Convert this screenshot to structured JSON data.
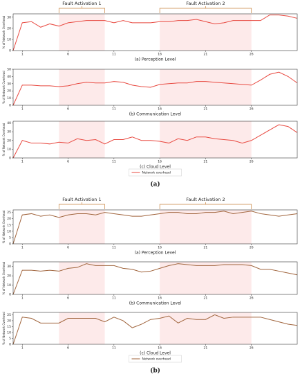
{
  "chart_data": [
    {
      "type": "line",
      "xlabel": "(a) Perception Level",
      "ylabel": "% of Network Overhead",
      "x": [
        0,
        1,
        2,
        3,
        4,
        5,
        6,
        7,
        8,
        9,
        10,
        11,
        12,
        13,
        14,
        15,
        16,
        17,
        18,
        19,
        20,
        21,
        22,
        23,
        24,
        25,
        26,
        27,
        28,
        29,
        30,
        31
      ],
      "series": [
        {
          "name": "Network overhead",
          "color": "#e8483f",
          "values": [
            0,
            25,
            26,
            21,
            24,
            22,
            25,
            26,
            27,
            27,
            27,
            25,
            27,
            25,
            25,
            25,
            26,
            26,
            27,
            27,
            28,
            26,
            24,
            25,
            27,
            27,
            27,
            27,
            32,
            32,
            31,
            29
          ]
        }
      ],
      "xlim": [
        0,
        31
      ],
      "xticks": [
        1,
        6,
        11,
        16,
        21,
        26
      ],
      "ylim": [
        0,
        33
      ],
      "yticks": [
        0,
        10,
        20,
        30
      ],
      "highlights": [
        [
          5,
          10
        ],
        [
          16,
          26
        ]
      ],
      "annotations": [
        {
          "text": "Fault Activation 1",
          "from": 5,
          "to": 10
        },
        {
          "text": "Fault Activation 2",
          "from": 16,
          "to": 26
        }
      ]
    },
    {
      "type": "line",
      "xlabel": "(b) Communication Level",
      "ylabel": "% of Network Overhead",
      "x": [
        0,
        1,
        2,
        3,
        4,
        5,
        6,
        7,
        8,
        9,
        10,
        11,
        12,
        13,
        14,
        15,
        16,
        17,
        18,
        19,
        20,
        21,
        22,
        23,
        24,
        25,
        26,
        27,
        28,
        29,
        30,
        31
      ],
      "series": [
        {
          "name": "Network overhead",
          "color": "#e8483f",
          "values": [
            0,
            28,
            28,
            27,
            27,
            26,
            27,
            30,
            32,
            31,
            31,
            33,
            32,
            28,
            26,
            25,
            29,
            30,
            31,
            31,
            33,
            33,
            32,
            31,
            30,
            29,
            28,
            35,
            43,
            46,
            40,
            31
          ]
        }
      ],
      "xlim": [
        0,
        31
      ],
      "xticks": [
        1,
        6,
        11,
        16,
        21,
        26
      ],
      "ylim": [
        0,
        50
      ],
      "yticks": [
        0,
        10,
        20,
        30,
        40,
        50
      ],
      "highlights": [
        [
          5,
          10
        ],
        [
          16,
          26
        ]
      ]
    },
    {
      "type": "line",
      "xlabel": "(c) Cloud Level",
      "ylabel": "% of Network Overhead",
      "x": [
        0,
        1,
        2,
        3,
        4,
        5,
        6,
        7,
        8,
        9,
        10,
        11,
        12,
        13,
        14,
        15,
        16,
        17,
        18,
        19,
        20,
        21,
        22,
        23,
        24,
        25,
        26,
        27,
        28,
        29,
        30,
        31
      ],
      "series": [
        {
          "name": "Network overhead",
          "color": "#e8483f",
          "values": [
            0,
            20,
            17,
            17,
            16,
            18,
            17,
            22,
            20,
            21,
            16,
            21,
            21,
            24,
            20,
            20,
            19,
            17,
            22,
            20,
            24,
            24,
            22,
            21,
            20,
            17,
            20,
            26,
            32,
            38,
            36,
            29
          ]
        }
      ],
      "xlim": [
        0,
        31
      ],
      "xticks": [
        1,
        6,
        11,
        16,
        21,
        26
      ],
      "ylim": [
        0,
        42
      ],
      "yticks": [
        0,
        10,
        20,
        30,
        40
      ],
      "highlights": [
        [
          5,
          10
        ],
        [
          16,
          26
        ]
      ],
      "legend": true,
      "caption": "(a)"
    },
    {
      "type": "line",
      "xlabel": "(a) Perception Level",
      "ylabel": "% of Network Overhead",
      "x": [
        0,
        1,
        2,
        3,
        4,
        5,
        6,
        7,
        8,
        9,
        10,
        11,
        12,
        13,
        14,
        15,
        16,
        17,
        18,
        19,
        20,
        21,
        22,
        23,
        24,
        25,
        26,
        27,
        28,
        29,
        30,
        31
      ],
      "series": [
        {
          "name": "Network overhead",
          "color": "#a0643c",
          "values": [
            0,
            23,
            24,
            22,
            23,
            21,
            23,
            24,
            24,
            23,
            25,
            24,
            23,
            22,
            22,
            23,
            24,
            25,
            25,
            24,
            24,
            25,
            25,
            26,
            24,
            25,
            26,
            24,
            23,
            22,
            23,
            24
          ]
        }
      ],
      "xlim": [
        0,
        31
      ],
      "xticks": [
        1,
        6,
        11,
        16,
        21,
        26
      ],
      "ylim": [
        0,
        27
      ],
      "yticks": [
        0,
        5,
        10,
        15,
        20,
        25
      ],
      "highlights": [
        [
          5,
          10
        ],
        [
          16,
          26
        ]
      ],
      "annotations": [
        {
          "text": "Fault Activation 1",
          "from": 5,
          "to": 10
        },
        {
          "text": "Fault Activation 2",
          "from": 16,
          "to": 26
        }
      ]
    },
    {
      "type": "line",
      "xlabel": "(b) Communication Level",
      "ylabel": "% of Network Overhead",
      "x": [
        0,
        1,
        2,
        3,
        4,
        5,
        6,
        7,
        8,
        9,
        10,
        11,
        12,
        13,
        14,
        15,
        16,
        17,
        18,
        19,
        20,
        21,
        22,
        23,
        24,
        25,
        26,
        27,
        28,
        29,
        30,
        31
      ],
      "series": [
        {
          "name": "Network overhead",
          "color": "#a0643c",
          "values": [
            0,
            26,
            26,
            25,
            26,
            25,
            28,
            29,
            33,
            31,
            31,
            31,
            28,
            27,
            24,
            25,
            28,
            31,
            33,
            32,
            31,
            31,
            31,
            32,
            32,
            32,
            31,
            27,
            27,
            25,
            23,
            21
          ]
        }
      ],
      "xlim": [
        0,
        31
      ],
      "xticks": [
        1,
        6,
        11,
        16,
        21,
        26
      ],
      "ylim": [
        0,
        35
      ],
      "yticks": [
        0,
        10,
        20,
        30
      ],
      "highlights": [
        [
          5,
          10
        ],
        [
          16,
          26
        ]
      ]
    },
    {
      "type": "line",
      "xlabel": "(c) Cloud Level",
      "ylabel": "% of Network Overhead",
      "x": [
        0,
        1,
        2,
        3,
        4,
        5,
        6,
        7,
        8,
        9,
        10,
        11,
        12,
        13,
        14,
        15,
        16,
        17,
        18,
        19,
        20,
        21,
        22,
        23,
        24,
        25,
        26,
        27,
        28,
        29,
        30,
        31
      ],
      "series": [
        {
          "name": "Network overhead",
          "color": "#a0643c",
          "values": [
            0,
            23,
            22,
            18,
            18,
            18,
            22,
            22,
            22,
            22,
            19,
            23,
            20,
            14,
            17,
            21,
            22,
            24,
            18,
            22,
            21,
            21,
            25,
            22,
            23,
            23,
            23,
            23,
            21,
            19,
            17,
            16
          ]
        }
      ],
      "xlim": [
        0,
        31
      ],
      "xticks": [
        1,
        6,
        11,
        16,
        21,
        26
      ],
      "ylim": [
        0,
        27
      ],
      "yticks": [
        0,
        5,
        10,
        15,
        20,
        25
      ],
      "highlights": [
        [
          5,
          10
        ],
        [
          16,
          26
        ]
      ],
      "legend": true,
      "caption": "(b)"
    }
  ]
}
